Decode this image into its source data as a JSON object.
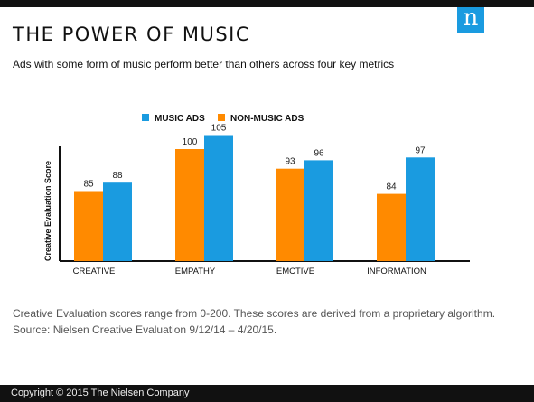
{
  "header": {
    "title": "THE POWER OF MUSIC",
    "subtitle": "Ads with some form of music perform better than others across four key metrics",
    "logo_letter": "n"
  },
  "colors": {
    "music": "#1a9be0",
    "non_music": "#ff8a00",
    "topbar": "#111111"
  },
  "chart_data": {
    "type": "bar",
    "categories": [
      "CREATIVE",
      "EMPATHY",
      "EMCTIVE",
      "INFORMATION"
    ],
    "series": [
      {
        "name": "NON-MUSIC ADS",
        "values": [
          85,
          100,
          93,
          84
        ]
      },
      {
        "name": "MUSIC ADS",
        "values": [
          88,
          105,
          96,
          97
        ]
      }
    ],
    "ylabel": "Creative Evaluation Score",
    "xlabel": "",
    "ylim": [
      60,
      110
    ],
    "legend_order": [
      "MUSIC ADS",
      "NON-MUSIC ADS"
    ],
    "legend_position": "top",
    "grid": false
  },
  "footnote": {
    "line1": "Creative Evaluation scores range from 0-200. These scores are derived from a proprietary algorithm.",
    "line2": "Source:  Nielsen Creative Evaluation 9/12/14 – 4/20/15."
  },
  "footer": {
    "copyright": "Copyright © 2015 The Nielsen Company"
  }
}
